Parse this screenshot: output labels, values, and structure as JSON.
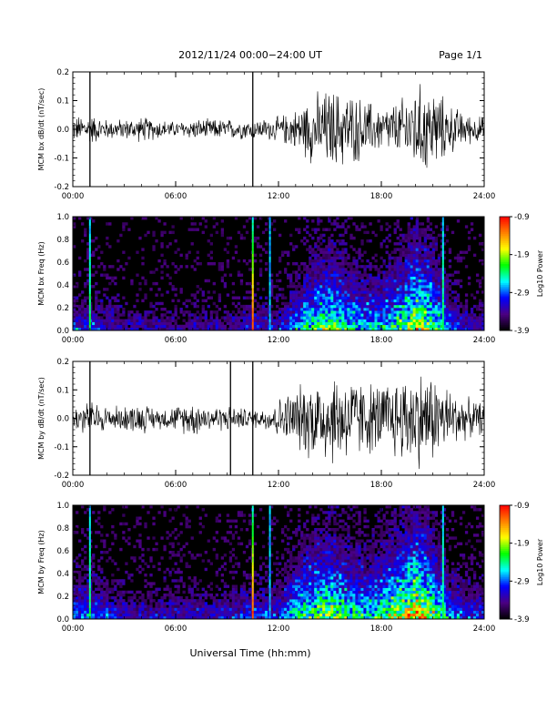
{
  "header": {
    "title": "2012/11/24  00:00−24:00 UT",
    "page": "Page 1/1"
  },
  "xaxis": {
    "label": "Universal Time (hh:mm)",
    "ticks": [
      "00:00",
      "06:00",
      "12:00",
      "18:00",
      "24:00"
    ],
    "range_hours": [
      0,
      24
    ]
  },
  "colorbar": {
    "label": "Log10 Power",
    "ticks": [
      "-0.9",
      "-1.9",
      "-2.9",
      "-3.9"
    ],
    "range": [
      -3.9,
      -0.9
    ],
    "colors": [
      "#000000",
      "#4b0082",
      "#0000ff",
      "#00ffff",
      "#00ff00",
      "#ffff00",
      "#ff8000",
      "#ff0000"
    ]
  },
  "chart_data": [
    {
      "type": "line",
      "id": "bx-waveform",
      "ylabel": "MCM bx dB/dt (nT/sec)",
      "ylim": [
        -0.2,
        0.2
      ],
      "yticks": [
        "-0.2",
        "-0.1",
        "0.0",
        "0.1",
        "0.2"
      ],
      "series": [
        {
          "x_hours": [
            0,
            1,
            2,
            3,
            4,
            5,
            6,
            7,
            8,
            9,
            10,
            11,
            12,
            13,
            14,
            15,
            16,
            17,
            18,
            19,
            20,
            21,
            22,
            23,
            24
          ],
          "amplitude": [
            0.05,
            0.06,
            0.04,
            0.04,
            0.05,
            0.04,
            0.03,
            0.04,
            0.04,
            0.04,
            0.04,
            0.04,
            0.05,
            0.08,
            0.14,
            0.16,
            0.15,
            0.12,
            0.09,
            0.11,
            0.18,
            0.17,
            0.1,
            0.06,
            0.05
          ]
        }
      ],
      "spikes_hours": [
        1.0,
        10.5
      ]
    },
    {
      "type": "heatmap",
      "id": "bx-spectrogram",
      "ylabel": "MCM bx Freq (Hz)",
      "ylim": [
        0.0,
        1.0
      ],
      "yticks": [
        "0.0",
        "0.2",
        "0.4",
        "0.6",
        "0.8",
        "1.0"
      ],
      "activity_hours": [
        0,
        1,
        2,
        3,
        4,
        5,
        6,
        7,
        8,
        9,
        10,
        11,
        12,
        13,
        14,
        15,
        16,
        17,
        18,
        19,
        20,
        21,
        22,
        23,
        24
      ],
      "activity": [
        0.25,
        0.25,
        0.2,
        0.15,
        0.15,
        0.15,
        0.15,
        0.15,
        0.15,
        0.15,
        0.2,
        0.2,
        0.2,
        0.35,
        0.5,
        0.55,
        0.45,
        0.4,
        0.4,
        0.5,
        0.65,
        0.55,
        0.3,
        0.2,
        0.2
      ],
      "vertical_lines_hours": [
        1.0,
        10.5,
        11.5,
        21.6
      ]
    },
    {
      "type": "line",
      "id": "by-waveform",
      "ylabel": "MCM by dB/dt (nT/sec)",
      "ylim": [
        -0.2,
        0.2
      ],
      "yticks": [
        "-0.2",
        "-0.1",
        "0.0",
        "0.1",
        "0.2"
      ],
      "series": [
        {
          "x_hours": [
            0,
            1,
            2,
            3,
            4,
            5,
            6,
            7,
            8,
            9,
            10,
            11,
            12,
            13,
            14,
            15,
            16,
            17,
            18,
            19,
            20,
            21,
            22,
            23,
            24
          ],
          "amplitude": [
            0.05,
            0.07,
            0.05,
            0.05,
            0.06,
            0.04,
            0.05,
            0.07,
            0.05,
            0.05,
            0.04,
            0.04,
            0.08,
            0.12,
            0.17,
            0.19,
            0.18,
            0.15,
            0.14,
            0.17,
            0.2,
            0.18,
            0.12,
            0.08,
            0.06
          ]
        }
      ],
      "spikes_hours": [
        1.0,
        9.2,
        10.5
      ]
    },
    {
      "type": "heatmap",
      "id": "by-spectrogram",
      "ylabel": "MCM by Freq (Hz)",
      "ylim": [
        0.0,
        1.0
      ],
      "yticks": [
        "0.0",
        "0.2",
        "0.4",
        "0.6",
        "0.8",
        "1.0"
      ],
      "activity_hours": [
        0,
        1,
        2,
        3,
        4,
        5,
        6,
        7,
        8,
        9,
        10,
        11,
        12,
        13,
        14,
        15,
        16,
        17,
        18,
        19,
        20,
        21,
        22,
        23,
        24
      ],
      "activity": [
        0.3,
        0.3,
        0.25,
        0.2,
        0.2,
        0.2,
        0.2,
        0.2,
        0.2,
        0.2,
        0.25,
        0.25,
        0.25,
        0.45,
        0.55,
        0.6,
        0.5,
        0.45,
        0.5,
        0.6,
        0.75,
        0.6,
        0.35,
        0.25,
        0.25
      ],
      "vertical_lines_hours": [
        1.0,
        10.5,
        11.5,
        21.6
      ]
    }
  ]
}
